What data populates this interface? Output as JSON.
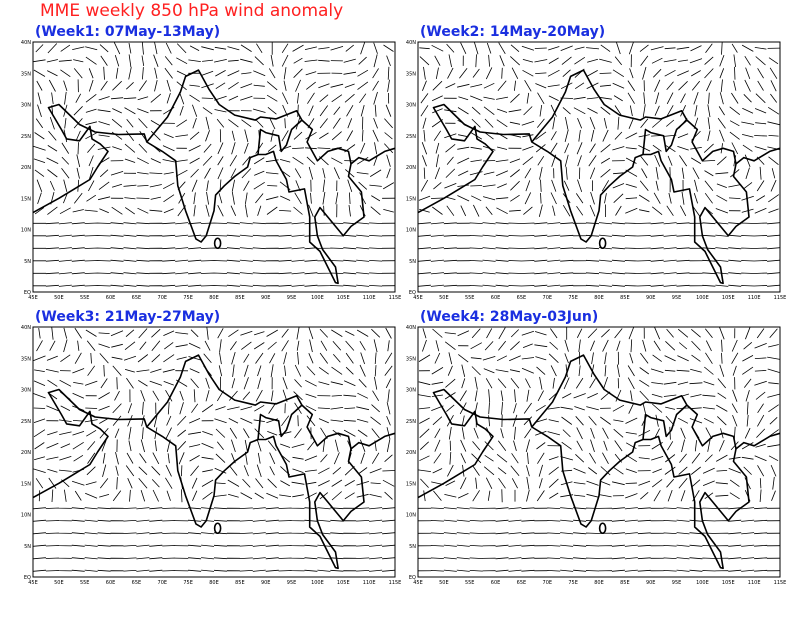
{
  "title": "MME weekly 850 hPa wind anomaly",
  "panels": [
    {
      "title": "(Week1: 07May-13May)"
    },
    {
      "title": "(Week2: 14May-20May)"
    },
    {
      "title": "(Week3: 21May-27May)"
    },
    {
      "title": "(Week4: 28May-03Jun)"
    }
  ],
  "lat_labels": [
    "40N",
    "35N",
    "30N",
    "25N",
    "20N",
    "15N",
    "10N",
    "5N",
    "EQ"
  ],
  "lon_labels": [
    "45E",
    "50E",
    "55E",
    "60E",
    "65E",
    "70E",
    "75E",
    "80E",
    "85E",
    "90E",
    "95E",
    "100E",
    "105E",
    "110E",
    "115E"
  ]
}
